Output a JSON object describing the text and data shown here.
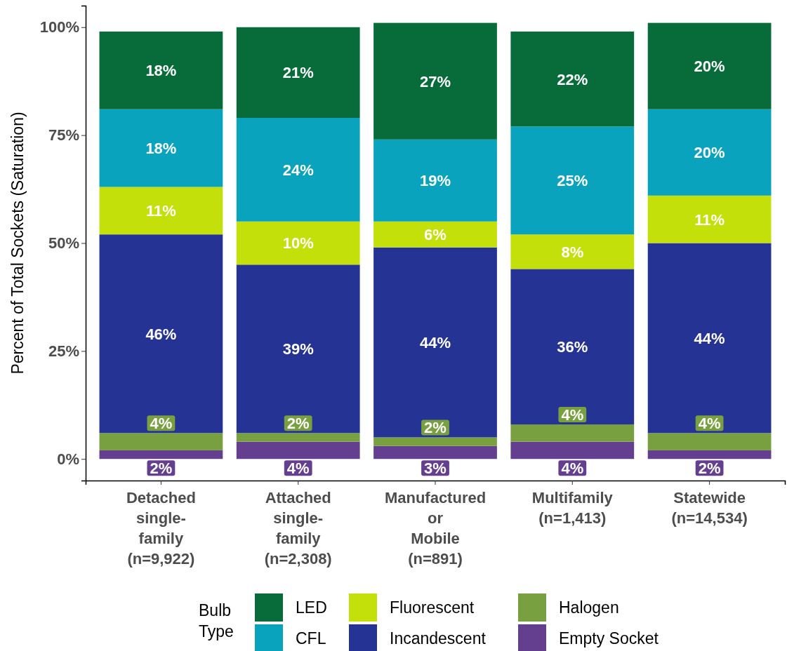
{
  "chart_data": {
    "type": "bar",
    "stacked": true,
    "legend": "bottom",
    "legend_title": "Bulb Type",
    "grid": false,
    "ylabel": "Percent of Total Sockets (Saturation)",
    "categories": [
      "Detached\nsingle-\nfamily\n(n=9,922)",
      "Attached\nsingle-\nfamily\n(n=2,308)",
      "Manufactured\nor\nMobile\n(n=891)",
      "Multifamily\n(n=1,413)",
      "Statewide\n(n=14,534)"
    ],
    "ylim": [
      -5,
      105
    ],
    "yticks": [
      {
        "value": 0,
        "label": "0%"
      },
      {
        "value": 25,
        "label": "25%"
      },
      {
        "value": 50,
        "label": "50%"
      },
      {
        "value": 75,
        "label": "75%"
      },
      {
        "value": 100,
        "label": "100%"
      }
    ],
    "series": [
      {
        "name": "Empty Socket",
        "color": "#653f8f",
        "values": [
          2,
          4,
          3,
          4,
          2
        ],
        "value_labels": [
          "2%",
          "4%",
          "3%",
          "4%",
          "2%"
        ]
      },
      {
        "name": "Halogen",
        "color": "#78a040",
        "values": [
          4,
          2,
          2,
          4,
          4
        ],
        "value_labels": [
          "4%",
          "2%",
          "2%",
          "4%",
          "4%"
        ]
      },
      {
        "name": "Incandescent",
        "color": "#253494",
        "values": [
          46,
          39,
          44,
          36,
          44
        ],
        "value_labels": [
          "46%",
          "39%",
          "44%",
          "36%",
          "44%"
        ]
      },
      {
        "name": "Fluorescent",
        "color": "#c3e00a",
        "values": [
          11,
          10,
          6,
          8,
          11
        ],
        "value_labels": [
          "11%",
          "10%",
          "6%",
          "8%",
          "11%"
        ]
      },
      {
        "name": "CFL",
        "color": "#0aa3bd",
        "values": [
          18,
          24,
          19,
          25,
          20
        ],
        "value_labels": [
          "18%",
          "24%",
          "19%",
          "25%",
          "20%"
        ]
      },
      {
        "name": "LED",
        "color": "#076b3a",
        "values": [
          18,
          21,
          27,
          22,
          20
        ],
        "value_labels": [
          "18%",
          "21%",
          "27%",
          "22%",
          "20%"
        ]
      }
    ]
  }
}
